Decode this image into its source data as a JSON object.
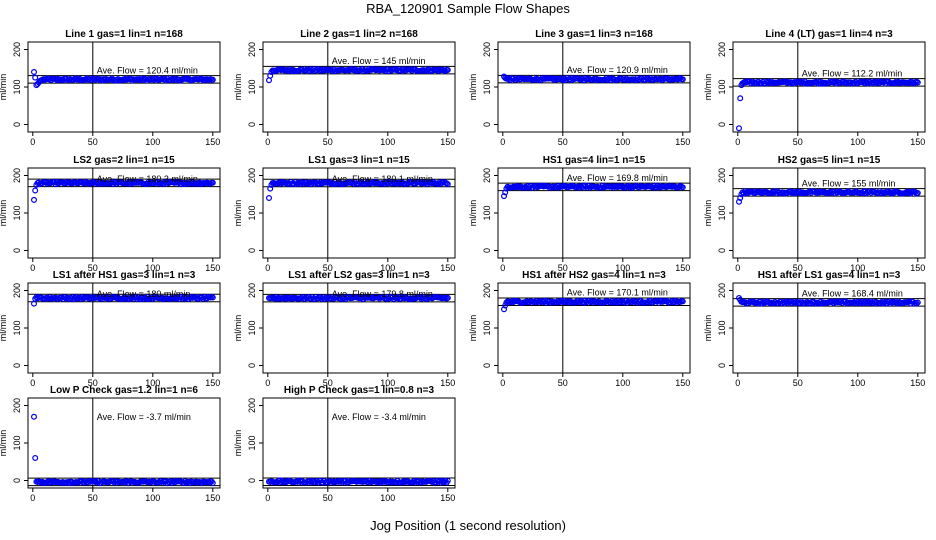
{
  "figure": {
    "title": "RBA_120901  Sample Flow Shapes",
    "xlabel": "Jog Position (1 second resolution)",
    "ylabel": "ml/min",
    "ave_prefix": "Ave. Flow =",
    "ave_unit": "ml/min"
  },
  "chart_data": [
    {
      "type": "scatter",
      "title": "Line 1 gas=1 lin=1 n=168",
      "x_range": [
        1,
        150
      ],
      "ylim": [
        -20,
        220
      ],
      "yticks": [
        0,
        100,
        200
      ],
      "xticks": [
        0,
        50,
        100,
        150
      ],
      "vline": 50,
      "avg": 120.4,
      "avg_label": "120.4",
      "start_values": [
        140,
        125,
        105,
        108,
        112,
        116,
        118,
        119
      ],
      "steady": 120,
      "color": "#0000ee"
    },
    {
      "type": "scatter",
      "title": "Line 2 gas=1 lin=2 n=168",
      "x_range": [
        1,
        150
      ],
      "ylim": [
        -20,
        220
      ],
      "yticks": [
        0,
        100,
        200
      ],
      "xticks": [
        0,
        50,
        100,
        150
      ],
      "vline": 50,
      "avg": 145,
      "avg_label": "145",
      "start_values": [
        118,
        130,
        140,
        144
      ],
      "steady": 145,
      "color": "#0000ee"
    },
    {
      "type": "scatter",
      "title": "Line 3 gas=1 lin=3 n=168",
      "x_range": [
        1,
        150
      ],
      "ylim": [
        -20,
        220
      ],
      "yticks": [
        0,
        100,
        200
      ],
      "xticks": [
        0,
        50,
        100,
        150
      ],
      "vline": 50,
      "avg": 120.9,
      "avg_label": "120.9",
      "start_values": [
        128,
        124,
        122
      ],
      "steady": 121,
      "color": "#0000ee"
    },
    {
      "type": "scatter",
      "title": "Line 4 (LT) gas=1 lin=4 n=3",
      "x_range": [
        1,
        150
      ],
      "ylim": [
        -20,
        220
      ],
      "yticks": [
        0,
        100,
        200
      ],
      "xticks": [
        0,
        50,
        100,
        150
      ],
      "vline": 50,
      "avg": 112.2,
      "avg_label": "112.2",
      "start_values": [
        -10,
        70,
        105,
        110
      ],
      "steady": 112,
      "color": "#0000ee"
    },
    {
      "type": "scatter",
      "title": "LS2 gas=2 lin=1 n=15",
      "x_range": [
        1,
        150
      ],
      "ylim": [
        -20,
        220
      ],
      "yticks": [
        0,
        100,
        200
      ],
      "xticks": [
        0,
        50,
        100,
        150
      ],
      "vline": 50,
      "avg": 180.3,
      "avg_label": "180.3",
      "start_values": [
        135,
        160,
        175,
        180
      ],
      "steady": 180,
      "color": "#0000ee"
    },
    {
      "type": "scatter",
      "title": "LS1 gas=3 lin=1 n=15",
      "x_range": [
        1,
        150
      ],
      "ylim": [
        -20,
        220
      ],
      "yticks": [
        0,
        100,
        200
      ],
      "xticks": [
        0,
        50,
        100,
        150
      ],
      "vline": 50,
      "avg": 180.1,
      "avg_label": "180.1",
      "start_values": [
        140,
        165,
        175,
        180
      ],
      "steady": 180,
      "color": "#0000ee"
    },
    {
      "type": "scatter",
      "title": "HS1 gas=4 lin=1 n=15",
      "x_range": [
        1,
        150
      ],
      "ylim": [
        -20,
        220
      ],
      "yticks": [
        0,
        100,
        200
      ],
      "xticks": [
        0,
        50,
        100,
        150
      ],
      "vline": 50,
      "avg": 169.8,
      "avg_label": "169.8",
      "start_values": [
        145,
        155,
        165,
        170
      ],
      "steady": 170,
      "color": "#0000ee"
    },
    {
      "type": "scatter",
      "title": "HS2 gas=5 lin=1 n=15",
      "x_range": [
        1,
        150
      ],
      "ylim": [
        -20,
        220
      ],
      "yticks": [
        0,
        100,
        200
      ],
      "xticks": [
        0,
        50,
        100,
        150
      ],
      "vline": 50,
      "avg": 155,
      "avg_label": "155",
      "start_values": [
        130,
        140,
        150,
        155
      ],
      "steady": 155,
      "color": "#0000ee"
    },
    {
      "type": "scatter",
      "title": "LS1 after HS1 gas=3 lin=1 n=3",
      "x_range": [
        1,
        150
      ],
      "ylim": [
        -20,
        220
      ],
      "yticks": [
        0,
        100,
        200
      ],
      "xticks": [
        0,
        50,
        100,
        150
      ],
      "vline": 50,
      "avg": 180,
      "avg_label": "180",
      "start_values": [
        165,
        178,
        182
      ],
      "steady": 180,
      "color": "#0000ee"
    },
    {
      "type": "scatter",
      "title": "LS1 after LS2 gas=3 lin=1 n=3",
      "x_range": [
        1,
        150
      ],
      "ylim": [
        -20,
        220
      ],
      "yticks": [
        0,
        100,
        200
      ],
      "xticks": [
        0,
        50,
        100,
        150
      ],
      "vline": 50,
      "avg": 179.8,
      "avg_label": "179.8",
      "start_values": [
        180,
        179,
        180
      ],
      "steady": 180,
      "color": "#0000ee"
    },
    {
      "type": "scatter",
      "title": "HS1 after HS2 gas=4 lin=1 n=3",
      "x_range": [
        1,
        150
      ],
      "ylim": [
        -20,
        220
      ],
      "yticks": [
        0,
        100,
        200
      ],
      "xticks": [
        0,
        50,
        100,
        150
      ],
      "vline": 50,
      "avg": 170.1,
      "avg_label": "170.1",
      "start_values": [
        150,
        160,
        168
      ],
      "steady": 170,
      "color": "#0000ee"
    },
    {
      "type": "scatter",
      "title": "HS1 after LS1 gas=4 lin=1 n=3",
      "x_range": [
        1,
        150
      ],
      "ylim": [
        -20,
        220
      ],
      "yticks": [
        0,
        100,
        200
      ],
      "xticks": [
        0,
        50,
        100,
        150
      ],
      "vline": 50,
      "avg": 168.4,
      "avg_label": "168.4",
      "start_values": [
        180,
        175,
        170
      ],
      "steady": 168,
      "color": "#0000ee"
    },
    {
      "type": "scatter",
      "title": "Low P Check gas=1.2 lin=1 n=6",
      "x_range": [
        1,
        150
      ],
      "ylim": [
        -20,
        220
      ],
      "yticks": [
        0,
        100,
        200
      ],
      "xticks": [
        0,
        50,
        100,
        150
      ],
      "vline": 50,
      "avg": -3.7,
      "avg_label": "-3.7",
      "start_values": [
        170,
        60,
        -3,
        -4
      ],
      "steady": -4,
      "color": "#0000ee"
    },
    {
      "type": "scatter",
      "title": "High P Check gas=1 lin=0.8 n=3",
      "x_range": [
        1,
        150
      ],
      "ylim": [
        -20,
        220
      ],
      "yticks": [
        0,
        100,
        200
      ],
      "xticks": [
        0,
        50,
        100,
        150
      ],
      "vline": 50,
      "avg": -3.4,
      "avg_label": "-3.4",
      "start_values": [
        -3,
        -4
      ],
      "steady": -3,
      "color": "#0000ee"
    }
  ]
}
